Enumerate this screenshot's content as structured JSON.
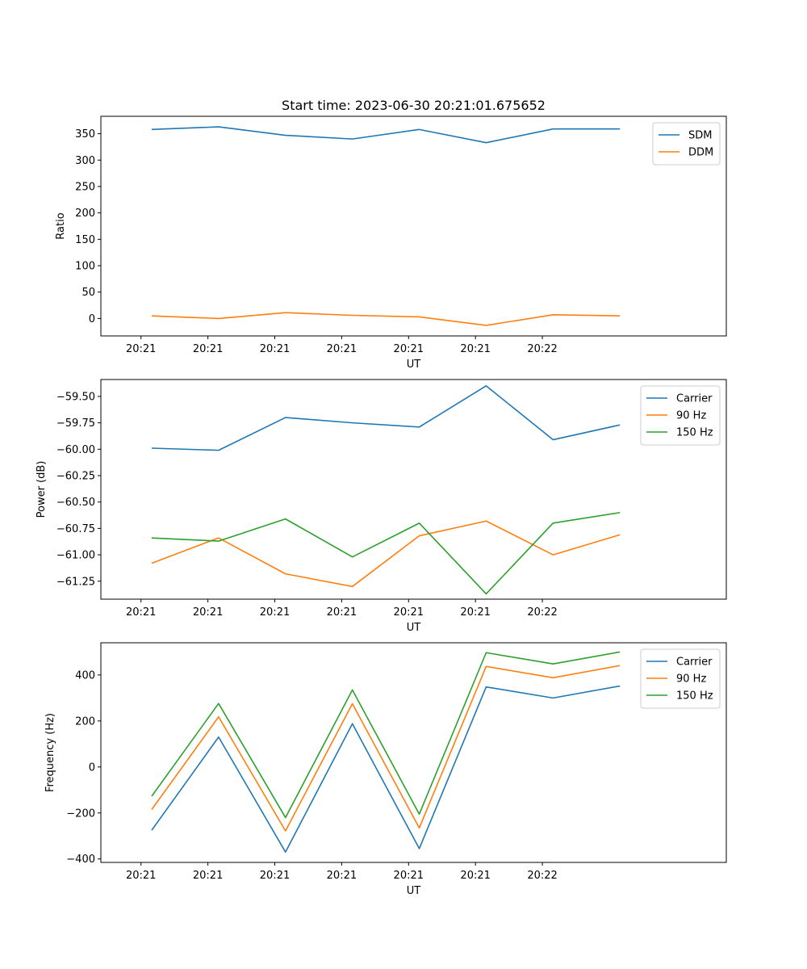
{
  "figure": {
    "title": "Start time: 2023-06-30 20:21:01.675652"
  },
  "chart_data": [
    {
      "type": "line",
      "title": "Start time: 2023-06-30 20:21:01.675652",
      "xlabel": "UT",
      "ylabel": "Ratio",
      "x_tick_labels": [
        "20:21",
        "20:21",
        "20:21",
        "20:21",
        "20:21",
        "20:21",
        "20:22"
      ],
      "y_ticks": [
        0,
        50,
        100,
        150,
        200,
        250,
        300,
        350
      ],
      "ylim": [
        -33,
        383
      ],
      "xlim": [
        -0.6,
        8.75
      ],
      "legend": "top-right",
      "grid": false,
      "x": [
        0.16,
        1.16,
        2.16,
        3.16,
        4.16,
        5.16,
        6.16,
        7.16
      ],
      "series": [
        {
          "name": "SDM",
          "color": "#1f77b4",
          "values": [
            358,
            363,
            347,
            340,
            358,
            333,
            359,
            359
          ]
        },
        {
          "name": "DDM",
          "color": "#ff7f0e",
          "values": [
            5,
            0,
            11,
            6,
            3,
            -13,
            7,
            5
          ]
        }
      ]
    },
    {
      "type": "line",
      "title": "",
      "xlabel": "UT",
      "ylabel": "Power (dB)",
      "x_tick_labels": [
        "20:21",
        "20:21",
        "20:21",
        "20:21",
        "20:21",
        "20:21",
        "20:22"
      ],
      "y_ticks": [
        -61.25,
        -61.0,
        -60.75,
        -60.5,
        -60.25,
        -60.0,
        -59.75,
        -59.5
      ],
      "y_tick_labels": [
        "−61.25",
        "−61.00",
        "−60.75",
        "−60.50",
        "−60.25",
        "−60.00",
        "−59.75",
        "−59.50"
      ],
      "ylim": [
        -61.42,
        -59.34
      ],
      "xlim": [
        -0.6,
        8.75
      ],
      "legend": "top-right",
      "grid": false,
      "x": [
        0.16,
        1.16,
        2.16,
        3.16,
        4.16,
        5.16,
        6.16,
        7.16
      ],
      "series": [
        {
          "name": "Carrier",
          "color": "#1f77b4",
          "values": [
            -59.99,
            -60.01,
            -59.7,
            -59.75,
            -59.79,
            -59.4,
            -59.91,
            -59.77
          ]
        },
        {
          "name": "90 Hz",
          "color": "#ff7f0e",
          "values": [
            -61.08,
            -60.84,
            -61.18,
            -61.3,
            -60.82,
            -60.68,
            -61.0,
            -60.81
          ]
        },
        {
          "name": "150 Hz",
          "color": "#2ca02c",
          "values": [
            -60.84,
            -60.87,
            -60.66,
            -61.02,
            -60.7,
            -61.37,
            -60.7,
            -60.6
          ]
        }
      ]
    },
    {
      "type": "line",
      "title": "",
      "xlabel": "UT",
      "ylabel": "Frequency (Hz)",
      "x_tick_labels": [
        "20:21",
        "20:21",
        "20:21",
        "20:21",
        "20:21",
        "20:21",
        "20:22"
      ],
      "y_ticks": [
        -400,
        -200,
        0,
        200,
        400
      ],
      "y_tick_labels": [
        "−400",
        "−200",
        "0",
        "200",
        "400"
      ],
      "ylim": [
        -415,
        540
      ],
      "xlim": [
        -0.6,
        8.75
      ],
      "legend": "top-right",
      "grid": false,
      "x": [
        0.16,
        1.16,
        2.16,
        3.16,
        4.16,
        5.16,
        6.16,
        7.16
      ],
      "series": [
        {
          "name": "Carrier",
          "color": "#1f77b4",
          "values": [
            -275,
            130,
            -370,
            188,
            -355,
            348,
            300,
            352
          ]
        },
        {
          "name": "90 Hz",
          "color": "#ff7f0e",
          "values": [
            -185,
            218,
            -278,
            275,
            -265,
            437,
            388,
            441
          ]
        },
        {
          "name": "150 Hz",
          "color": "#2ca02c",
          "values": [
            -127,
            276,
            -220,
            335,
            -205,
            497,
            448,
            500
          ]
        }
      ]
    }
  ]
}
